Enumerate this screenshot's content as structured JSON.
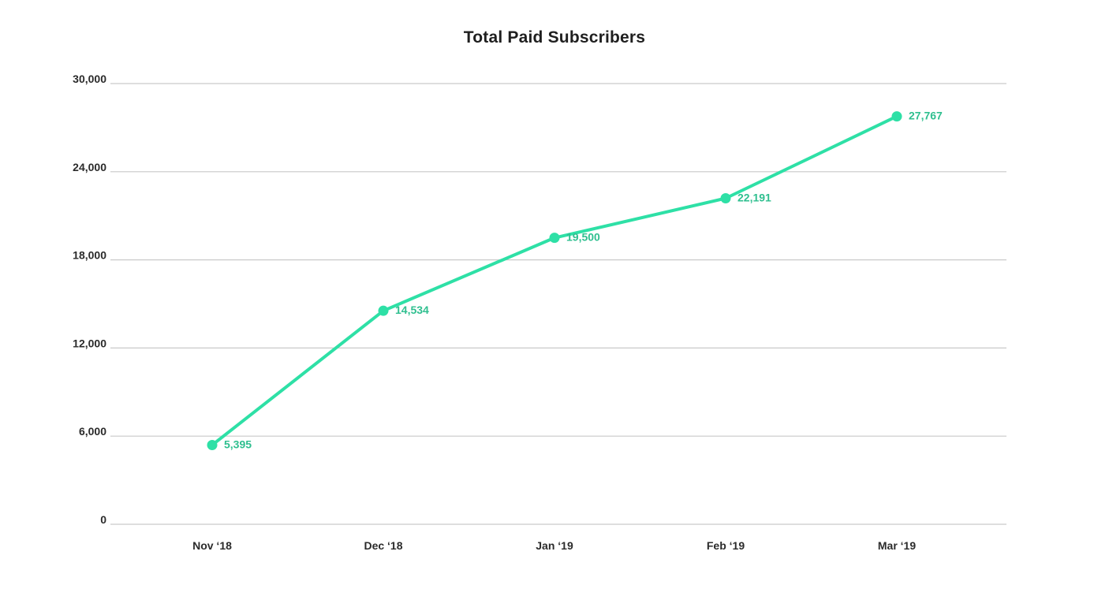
{
  "chart_data": {
    "type": "line",
    "title": "Total Paid Subscribers",
    "xlabel": "",
    "ylabel": "",
    "categories": [
      "Nov ‘18",
      "Dec ‘18",
      "Jan ‘19",
      "Feb ‘19",
      "Mar ‘19"
    ],
    "series": [
      {
        "values": [
          5395,
          14534,
          19500,
          22191,
          27767
        ],
        "labels": [
          "5,395",
          "14,534",
          "19,500",
          "22,191",
          "27,767"
        ],
        "color": "#2ee0a6"
      }
    ],
    "yticks": [
      0,
      6000,
      12000,
      18000,
      24000,
      30000
    ],
    "ytick_labels": [
      "0",
      "6,000",
      "12,000",
      "18,000",
      "24,000",
      "30,000"
    ],
    "ylim": [
      0,
      30000
    ],
    "grid": true,
    "legend": "none",
    "label_color": "#2fbf8f",
    "grid_color": "#c9c9c9"
  }
}
